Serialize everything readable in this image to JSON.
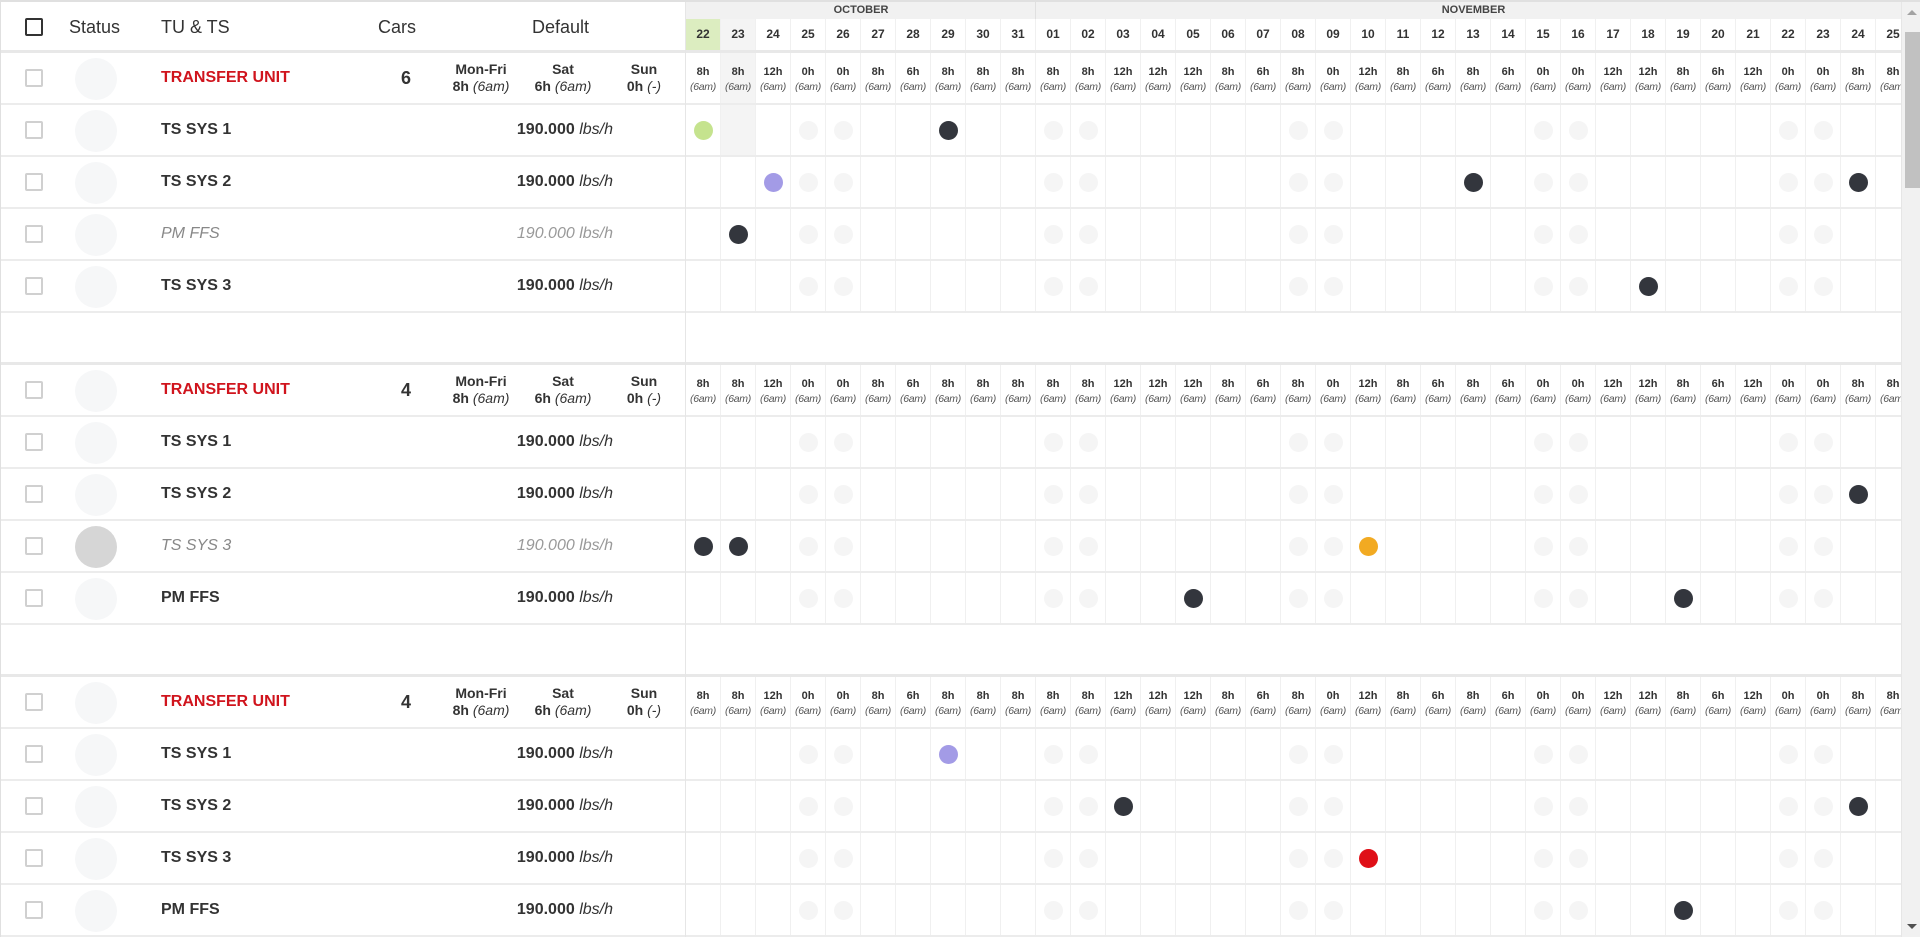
{
  "header": {
    "status": "Status",
    "name": "TU & TS",
    "cars": "Cars",
    "default": "Default"
  },
  "months": [
    {
      "label": "OCTOBER",
      "start_index": 0,
      "span": 10
    },
    {
      "label": "NOVEMBER",
      "start_index": 10,
      "span": 25
    }
  ],
  "dates": [
    "22",
    "23",
    "24",
    "25",
    "26",
    "27",
    "28",
    "29",
    "30",
    "31",
    "01",
    "02",
    "03",
    "04",
    "05",
    "06",
    "07",
    "08",
    "09",
    "10",
    "11",
    "12",
    "13",
    "14",
    "15",
    "16",
    "17",
    "18",
    "19",
    "20",
    "21",
    "22",
    "23",
    "24",
    "25"
  ],
  "today_index": 0,
  "hover_index": 1,
  "weekend_indices": [
    3,
    4,
    10,
    11,
    17,
    18,
    24,
    25,
    31,
    32
  ],
  "hours": [
    "8h",
    "8h",
    "12h",
    "0h",
    "0h",
    "8h",
    "6h",
    "8h",
    "8h",
    "8h",
    "8h",
    "8h",
    "12h",
    "12h",
    "12h",
    "8h",
    "6h",
    "8h",
    "0h",
    "12h",
    "8h",
    "6h",
    "8h",
    "6h",
    "0h",
    "0h",
    "12h",
    "12h",
    "8h",
    "6h",
    "12h",
    "0h",
    "0h",
    "8h",
    "8h"
  ],
  "start_time": "(6am)",
  "defaults": {
    "monfri_label": "Mon-Fri",
    "monfri_hours": "8h",
    "monfri_time": "(6am)",
    "sat_label": "Sat",
    "sat_hours": "6h",
    "sat_time": "(6am)",
    "sun_label": "Sun",
    "sun_hours": "0h",
    "sun_time": "(-)"
  },
  "colors": {
    "transfer_unit": "#d0141d",
    "today": "#dcedc0",
    "dot_dark": "#33363d",
    "dot_green": "#c5e38e",
    "dot_purple": "#a39be6",
    "dot_orange": "#f2aa22",
    "dot_red": "#df0f17"
  },
  "groups": [
    {
      "name": "TRANSFER UNIT",
      "cars": "6",
      "rows": [
        {
          "name": "TS SYS 1",
          "rate": "190.000",
          "unit": "lbs/h",
          "dim": false,
          "status": "light",
          "dots": [
            {
              "i": 0,
              "c": "green"
            },
            {
              "i": 7,
              "c": "dark"
            }
          ]
        },
        {
          "name": "TS SYS 2",
          "rate": "190.000",
          "unit": "lbs/h",
          "dim": false,
          "status": "light",
          "dots": [
            {
              "i": 2,
              "c": "purple"
            },
            {
              "i": 22,
              "c": "dark"
            },
            {
              "i": 33,
              "c": "dark"
            }
          ]
        },
        {
          "name": "PM FFS",
          "rate": "190.000",
          "unit": "lbs/h",
          "dim": true,
          "status": "light",
          "dots": [
            {
              "i": 1,
              "c": "dark"
            }
          ]
        },
        {
          "name": "TS SYS 3",
          "rate": "190.000",
          "unit": "lbs/h",
          "dim": false,
          "status": "light",
          "dots": [
            {
              "i": 27,
              "c": "dark"
            }
          ]
        }
      ]
    },
    {
      "name": "TRANSFER UNIT",
      "cars": "4",
      "rows": [
        {
          "name": "TS SYS 1",
          "rate": "190.000",
          "unit": "lbs/h",
          "dim": false,
          "status": "light",
          "dots": []
        },
        {
          "name": "TS SYS 2",
          "rate": "190.000",
          "unit": "lbs/h",
          "dim": false,
          "status": "light",
          "dots": [
            {
              "i": 33,
              "c": "dark"
            }
          ]
        },
        {
          "name": "TS SYS 3",
          "rate": "190.000",
          "unit": "lbs/h",
          "dim": true,
          "status": "grey",
          "dots": [
            {
              "i": 0,
              "c": "dark"
            },
            {
              "i": 1,
              "c": "dark"
            },
            {
              "i": 19,
              "c": "orange"
            }
          ]
        },
        {
          "name": "PM FFS",
          "rate": "190.000",
          "unit": "lbs/h",
          "dim": false,
          "status": "light",
          "dots": [
            {
              "i": 14,
              "c": "dark"
            },
            {
              "i": 28,
              "c": "dark"
            }
          ]
        }
      ]
    },
    {
      "name": "TRANSFER UNIT",
      "cars": "4",
      "rows": [
        {
          "name": "TS SYS 1",
          "rate": "190.000",
          "unit": "lbs/h",
          "dim": false,
          "status": "light",
          "dots": [
            {
              "i": 7,
              "c": "purple"
            }
          ]
        },
        {
          "name": "TS SYS 2",
          "rate": "190.000",
          "unit": "lbs/h",
          "dim": false,
          "status": "light",
          "dots": [
            {
              "i": 12,
              "c": "dark"
            },
            {
              "i": 33,
              "c": "dark"
            }
          ]
        },
        {
          "name": "TS SYS 3",
          "rate": "190.000",
          "unit": "lbs/h",
          "dim": false,
          "status": "light",
          "dots": [
            {
              "i": 19,
              "c": "red"
            }
          ]
        },
        {
          "name": "PM FFS",
          "rate": "190.000",
          "unit": "lbs/h",
          "dim": false,
          "status": "light",
          "dots": [
            {
              "i": 28,
              "c": "dark"
            }
          ]
        }
      ]
    }
  ]
}
